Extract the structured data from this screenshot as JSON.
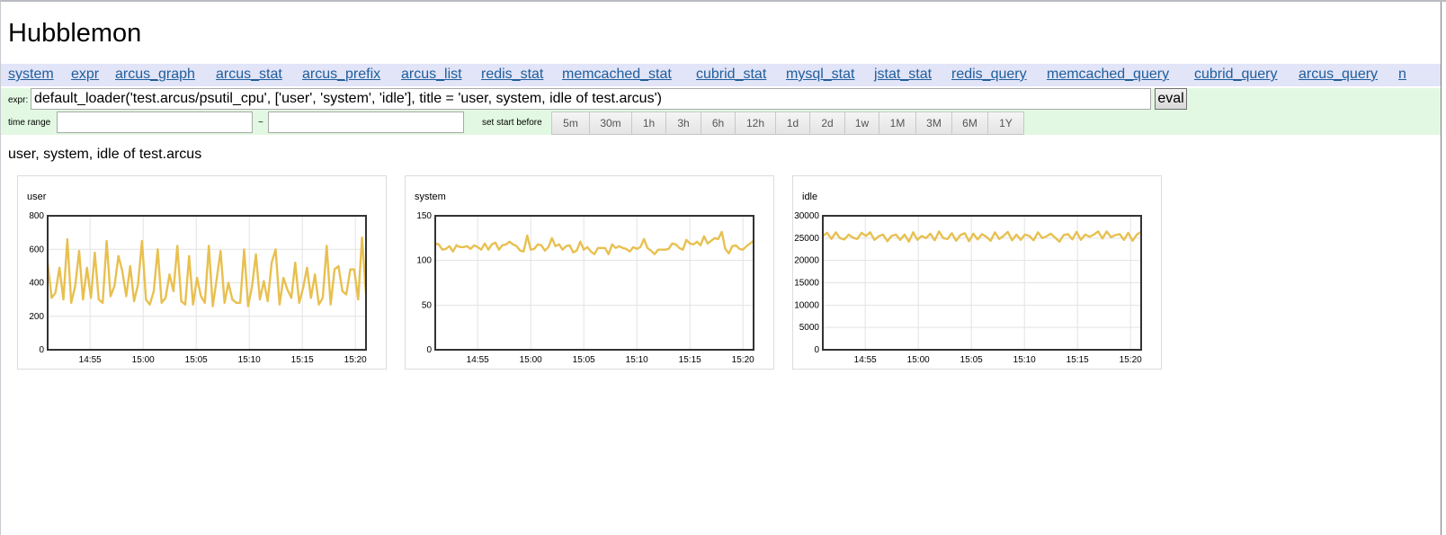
{
  "app": {
    "title": "Hubblemon"
  },
  "nav": {
    "links": [
      "system",
      "expr",
      "arcus_graph",
      "arcus_stat",
      "arcus_prefix",
      "arcus_list",
      "redis_stat",
      "memcached_stat",
      "cubrid_stat",
      "mysql_stat",
      "jstat_stat",
      "redis_query",
      "memcached_query",
      "cubrid_query",
      "arcus_query",
      "n"
    ]
  },
  "expr": {
    "label": "expr:",
    "value": "default_loader('test.arcus/psutil_cpu', ['user', 'system', 'idle'], title = 'user, system, idle of test.arcus')",
    "eval_label": "eval"
  },
  "time_range": {
    "label": "time range",
    "separator": "~",
    "start_value": "",
    "end_value": "",
    "set_start_label": "set start before",
    "buttons": [
      "5m",
      "30m",
      "1h",
      "3h",
      "6h",
      "12h",
      "1d",
      "2d",
      "1w",
      "1M",
      "3M",
      "6M",
      "1Y"
    ]
  },
  "graph": {
    "title": "user, system, idle of test.arcus"
  },
  "colors": {
    "line": "#e8c050",
    "nav_bg": "#e2e4f8",
    "form_bg": "#e2f8e2",
    "link": "#1f5e9a"
  },
  "chart_data": [
    {
      "type": "line",
      "title": "user",
      "x_ticks": [
        "14:55",
        "15:00",
        "15:05",
        "15:10",
        "15:15",
        "15:20"
      ],
      "x_range": [
        "14:51",
        "15:21"
      ],
      "ylim": [
        0,
        800
      ],
      "y_ticks": [
        0,
        200,
        400,
        600,
        800
      ],
      "grid": true,
      "series": [
        {
          "values": [
            520,
            310,
            340,
            490,
            300,
            660,
            280,
            380,
            590,
            300,
            490,
            310,
            580,
            300,
            280,
            650,
            320,
            380,
            560,
            470,
            320,
            500,
            290,
            390,
            650,
            300,
            270,
            350,
            600,
            280,
            310,
            450,
            350,
            620,
            290,
            270,
            560,
            270,
            430,
            320,
            280,
            620,
            260,
            420,
            590,
            280,
            400,
            300,
            280,
            280,
            600,
            260,
            380,
            570,
            300,
            410,
            290,
            520,
            600,
            270,
            430,
            360,
            310,
            520,
            280,
            370,
            490,
            310,
            450,
            270,
            310,
            620,
            270,
            480,
            500,
            350,
            330,
            480,
            480,
            300,
            670,
            330
          ]
        }
      ]
    },
    {
      "type": "line",
      "title": "system",
      "x_ticks": [
        "14:55",
        "15:00",
        "15:05",
        "15:10",
        "15:15",
        "15:20"
      ],
      "x_range": [
        "14:51",
        "15:21"
      ],
      "ylim": [
        0,
        150
      ],
      "y_ticks": [
        0,
        50,
        100,
        150
      ],
      "grid": true,
      "series": [
        {
          "values": [
            119,
            118,
            112,
            113,
            116,
            110,
            117,
            115,
            115,
            116,
            113,
            117,
            115,
            112,
            119,
            112,
            118,
            120,
            112,
            117,
            118,
            121,
            118,
            116,
            111,
            110,
            128,
            112,
            113,
            118,
            117,
            111,
            115,
            125,
            116,
            118,
            112,
            116,
            117,
            109,
            111,
            121,
            112,
            115,
            110,
            107,
            114,
            114,
            114,
            107,
            118,
            114,
            116,
            114,
            113,
            110,
            115,
            113,
            115,
            124,
            114,
            111,
            107,
            112,
            112,
            112,
            113,
            119,
            118,
            114,
            112,
            123,
            119,
            118,
            121,
            117,
            127,
            119,
            122,
            125,
            124,
            132,
            113,
            108,
            116,
            117,
            113,
            112,
            116,
            119,
            122
          ]
        }
      ]
    },
    {
      "type": "line",
      "title": "idle",
      "x_ticks": [
        "14:55",
        "15:00",
        "15:05",
        "15:10",
        "15:15",
        "15:20"
      ],
      "x_range": [
        "14:51",
        "15:21"
      ],
      "ylim": [
        0,
        30000
      ],
      "y_ticks": [
        0,
        5000,
        10000,
        15000,
        20000,
        25000,
        30000
      ],
      "grid": true,
      "series": [
        {
          "values": [
            25500,
            26200,
            24800,
            26300,
            25000,
            24700,
            25800,
            25100,
            24800,
            26200,
            25500,
            26300,
            24600,
            25400,
            25800,
            24300,
            25500,
            25800,
            24600,
            25800,
            24200,
            26300,
            24600,
            25500,
            25000,
            26000,
            24500,
            26500,
            25000,
            24800,
            26100,
            24400,
            25700,
            26100,
            24300,
            26000,
            24700,
            25900,
            25300,
            24400,
            26300,
            24800,
            25500,
            26400,
            24500,
            25800,
            24600,
            25800,
            25500,
            24500,
            26300,
            25000,
            25400,
            26000,
            25100,
            24200,
            25700,
            25900,
            24700,
            26400,
            24600,
            25800,
            25300,
            25800,
            26500,
            24900,
            26500,
            25200,
            25700,
            25900,
            24600,
            26200,
            24400,
            25800,
            26400
          ]
        }
      ]
    }
  ]
}
